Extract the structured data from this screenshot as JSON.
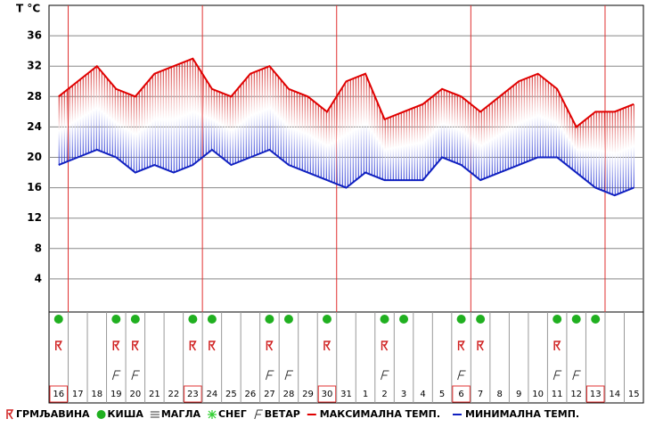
{
  "chart_data": {
    "type": "line",
    "y_label": "T °C",
    "categories": [
      "16",
      "17",
      "18",
      "19",
      "20",
      "21",
      "22",
      "23",
      "24",
      "25",
      "26",
      "27",
      "28",
      "29",
      "30",
      "31",
      "1",
      "2",
      "3",
      "4",
      "5",
      "6",
      "7",
      "8",
      "9",
      "10",
      "11",
      "12",
      "13",
      "14",
      "15"
    ],
    "highlighted": [
      "16",
      "23",
      "30",
      "6",
      "13"
    ],
    "series": [
      {
        "name": "МАКСИМАЛНА ТЕМП.",
        "color": "#e00000",
        "values": [
          28,
          30,
          32,
          29,
          28,
          31,
          32,
          33,
          29,
          28,
          31,
          32,
          29,
          28,
          26,
          30,
          31,
          25,
          26,
          27,
          29,
          28,
          26,
          28,
          30,
          31,
          29,
          24,
          26,
          26,
          27
        ]
      },
      {
        "name": "МИНИМАЛНА ТЕМП.",
        "color": "#1020c0",
        "values": [
          19,
          20,
          21,
          20,
          18,
          19,
          18,
          19,
          21,
          19,
          20,
          21,
          19,
          18,
          17,
          16,
          18,
          17,
          17,
          17,
          20,
          19,
          17,
          18,
          19,
          20,
          20,
          18,
          16,
          15,
          16
        ]
      }
    ],
    "conditions": [
      {
        "name": "ГРМЉАВИНА",
        "days": [
          "16",
          "19",
          "20",
          "23",
          "24",
          "27",
          "30",
          "2",
          "6",
          "7",
          "11"
        ]
      },
      {
        "name": "КИША",
        "days": [
          "16",
          "19",
          "20",
          "23",
          "24",
          "27",
          "28",
          "30",
          "2",
          "3",
          "6",
          "7",
          "11",
          "12",
          "13"
        ]
      },
      {
        "name": "МАГЛА",
        "days": []
      },
      {
        "name": "СНЕГ",
        "days": []
      },
      {
        "name": "ВЕТАР",
        "days": [
          "19",
          "20",
          "27",
          "28",
          "2",
          "6",
          "11",
          "12"
        ]
      }
    ],
    "ylim": [
      0,
      40
    ],
    "yticks": [
      4,
      8,
      12,
      16,
      20,
      24,
      28,
      32,
      36
    ],
    "grid": true
  }
}
